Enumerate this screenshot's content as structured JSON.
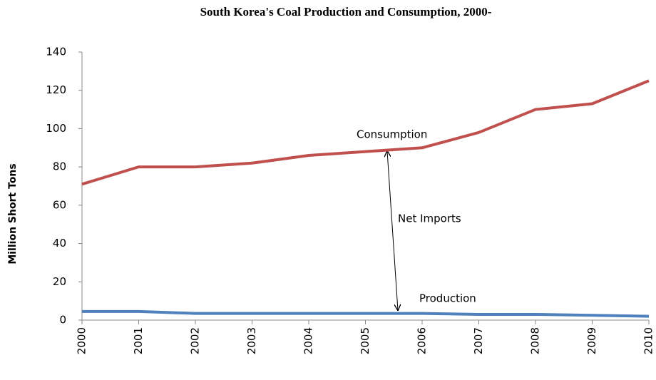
{
  "chart_data": {
    "type": "line",
    "title": "South Korea's Coal Production and Consumption, 2000-",
    "y_label": "Million Short Tons",
    "categories": [
      "2000",
      "2001",
      "2002",
      "2003",
      "2004",
      "2005",
      "2006",
      "2007",
      "2008",
      "2009",
      "2010"
    ],
    "series": [
      {
        "name": "Consumption",
        "color": "#c0504d",
        "values": [
          71,
          80,
          80,
          82,
          86,
          88,
          90,
          98,
          110,
          113,
          125
        ]
      },
      {
        "name": "Production",
        "color": "#4f81bd",
        "values": [
          4.5,
          4.5,
          3.5,
          3.5,
          3.5,
          3.5,
          3.5,
          3,
          3,
          2.5,
          2
        ]
      }
    ],
    "annotations": [
      "Net Imports"
    ],
    "ylim": [
      0,
      140
    ],
    "yticks": [
      0,
      20,
      40,
      60,
      80,
      100,
      120,
      140
    ],
    "grid": false
  }
}
